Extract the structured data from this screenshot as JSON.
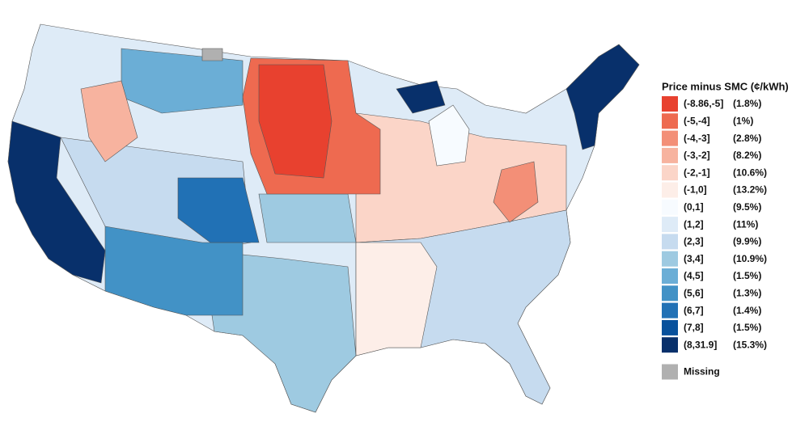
{
  "legend": {
    "title": "Price minus SMC (¢/kWh)",
    "items": [
      {
        "label": "(-8.86,-5]",
        "share": "(1.8%)",
        "color": "#e8412f"
      },
      {
        "label": "(-5,-4]",
        "share": "(1%)",
        "color": "#ee6a50"
      },
      {
        "label": "(-4,-3]",
        "share": "(2.8%)",
        "color": "#f38f77"
      },
      {
        "label": "(-3,-2]",
        "share": "(8.2%)",
        "color": "#f7b39f"
      },
      {
        "label": "(-2,-1]",
        "share": "(10.6%)",
        "color": "#fbd5c8"
      },
      {
        "label": "(-1,0]",
        "share": "(13.2%)",
        "color": "#fdeee8"
      },
      {
        "label": "(0,1]",
        "share": "(9.5%)",
        "color": "#f7fbff"
      },
      {
        "label": "(1,2]",
        "share": "(11%)",
        "color": "#deebf7"
      },
      {
        "label": "(2,3]",
        "share": "(9.9%)",
        "color": "#c6dbef"
      },
      {
        "label": "(3,4]",
        "share": "(10.9%)",
        "color": "#9ecae1"
      },
      {
        "label": "(4,5]",
        "share": "(1.5%)",
        "color": "#6baed6"
      },
      {
        "label": "(5,6]",
        "share": "(1.3%)",
        "color": "#4292c6"
      },
      {
        "label": "(6,7]",
        "share": "(1.4%)",
        "color": "#2171b5"
      },
      {
        "label": "(7,8]",
        "share": "(1.5%)",
        "color": "#08519c"
      },
      {
        "label": "(8,31.9]",
        "share": "(15.3%)",
        "color": "#08306b"
      }
    ],
    "missing": {
      "label": "Missing",
      "color": "#b0b0b0"
    }
  }
}
